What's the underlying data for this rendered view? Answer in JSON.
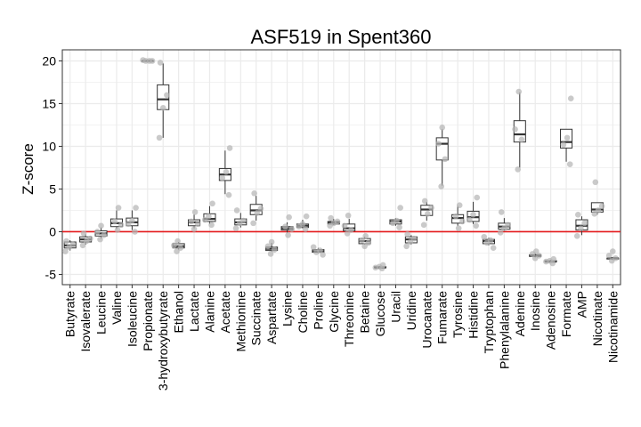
{
  "chart_data": {
    "type": "box",
    "title": "ASF519 in Spent360",
    "xlabel": "",
    "ylabel": "Z-score",
    "ylim": [
      -6.2,
      21.3
    ],
    "yticks": [
      -5,
      0,
      5,
      10,
      15,
      20
    ],
    "grid": true,
    "reference_line": {
      "y": 0,
      "color": "#e41a1c"
    },
    "colors": {
      "box": "#333333",
      "points": "#b3b3b3",
      "grid": "#ebebeb",
      "axis": "#333333"
    },
    "categories": [
      "Butyrate",
      "Isovalerate",
      "Leucine",
      "Valine",
      "Isoleucine",
      "Propionate",
      "3-hydroxybutyrate",
      "Ethanol",
      "Lactate",
      "Alanine",
      "Acetate",
      "Methionine",
      "Succinate",
      "Aspartate",
      "Lysine",
      "Choline",
      "Proline",
      "Glycine",
      "Threonine",
      "Betaine",
      "Glucose",
      "Uracil",
      "Uridine",
      "Urocanate",
      "Fumarate",
      "Tyrosine",
      "Histidine",
      "Tryptophan",
      "Phenylalanine",
      "Adenine",
      "Inosine",
      "Adenosine",
      "Formate",
      "AMP",
      "Nicotinate",
      "Nicotinamide"
    ],
    "boxes": [
      {
        "min": -2.2,
        "q1": -1.9,
        "median": -1.6,
        "q3": -1.2,
        "max": -1.0
      },
      {
        "min": -1.5,
        "q1": -1.2,
        "median": -0.9,
        "q3": -0.6,
        "max": -0.3
      },
      {
        "min": -0.8,
        "q1": -0.5,
        "median": -0.2,
        "q3": 0.1,
        "max": 0.5
      },
      {
        "min": 0.3,
        "q1": 0.6,
        "median": 1.0,
        "q3": 1.5,
        "max": 2.5
      },
      {
        "min": 0.2,
        "q1": 0.7,
        "median": 1.1,
        "q3": 1.6,
        "max": 2.5
      },
      {
        "min": 20.0,
        "q1": 20.0,
        "median": 20.0,
        "q3": 20.0,
        "max": 20.0
      },
      {
        "min": 11.0,
        "q1": 14.3,
        "median": 15.5,
        "q3": 17.2,
        "max": 19.7
      },
      {
        "min": -2.1,
        "q1": -1.9,
        "median": -1.7,
        "q3": -1.4,
        "max": -1.2
      },
      {
        "min": 0.4,
        "q1": 0.7,
        "median": 1.1,
        "q3": 1.4,
        "max": 2.0
      },
      {
        "min": 0.9,
        "q1": 1.2,
        "median": 1.5,
        "q3": 2.1,
        "max": 3.0
      },
      {
        "min": 4.4,
        "q1": 6.0,
        "median": 6.7,
        "q3": 7.4,
        "max": 9.5
      },
      {
        "min": 0.5,
        "q1": 0.8,
        "median": 1.1,
        "q3": 1.5,
        "max": 2.2
      },
      {
        "min": 1.3,
        "q1": 2.0,
        "median": 2.5,
        "q3": 3.2,
        "max": 4.2
      },
      {
        "min": -2.3,
        "q1": -2.2,
        "median": -2.0,
        "q3": -1.8,
        "max": -1.3
      },
      {
        "min": -0.1,
        "q1": 0.2,
        "median": 0.4,
        "q3": 0.6,
        "max": 1.1
      },
      {
        "min": 0.4,
        "q1": 0.5,
        "median": 0.7,
        "q3": 0.9,
        "max": 1.4
      },
      {
        "min": -2.5,
        "q1": -2.4,
        "median": -2.3,
        "q3": -2.1,
        "max": -1.9
      },
      {
        "min": 0.8,
        "q1": 0.9,
        "median": 1.1,
        "q3": 1.2,
        "max": 1.5
      },
      {
        "min": 0.0,
        "q1": 0.1,
        "median": 0.4,
        "q3": 0.9,
        "max": 1.5
      },
      {
        "min": -1.5,
        "q1": -1.4,
        "median": -1.1,
        "q3": -0.8,
        "max": -0.6
      },
      {
        "min": -4.2,
        "q1": -4.2,
        "median": -4.2,
        "q3": -4.1,
        "max": -4.0
      },
      {
        "min": 0.7,
        "q1": 0.9,
        "median": 1.2,
        "q3": 1.4,
        "max": 1.6
      },
      {
        "min": -1.5,
        "q1": -1.3,
        "median": -0.9,
        "q3": -0.6,
        "max": -0.4
      },
      {
        "min": 1.3,
        "q1": 1.9,
        "median": 2.6,
        "q3": 3.1,
        "max": 3.5
      },
      {
        "min": 5.4,
        "q1": 8.4,
        "median": 10.3,
        "q3": 11.0,
        "max": 12.0
      },
      {
        "min": 0.7,
        "q1": 1.0,
        "median": 1.6,
        "q3": 2.0,
        "max": 3.0
      },
      {
        "min": 0.9,
        "q1": 1.2,
        "median": 1.7,
        "q3": 2.4,
        "max": 3.5
      },
      {
        "min": -1.6,
        "q1": -1.4,
        "median": -1.1,
        "q3": -0.9,
        "max": -0.7
      },
      {
        "min": 0.1,
        "q1": 0.3,
        "median": 0.6,
        "q3": 1.0,
        "max": 1.6
      },
      {
        "min": 7.5,
        "q1": 10.5,
        "median": 11.4,
        "q3": 13.0,
        "max": 16.3
      },
      {
        "min": -3.0,
        "q1": -2.9,
        "median": -2.8,
        "q3": -2.7,
        "max": -2.5
      },
      {
        "min": -3.6,
        "q1": -3.5,
        "median": -3.5,
        "q3": -3.4,
        "max": -3.3
      },
      {
        "min": 8.2,
        "q1": 9.8,
        "median": 10.5,
        "q3": 12.0,
        "max": 12.0
      },
      {
        "min": -0.4,
        "q1": 0.2,
        "median": 0.7,
        "q3": 1.4,
        "max": 1.8
      },
      {
        "min": 2.0,
        "q1": 2.3,
        "median": 2.6,
        "q3": 3.4,
        "max": 3.4
      },
      {
        "min": -3.3,
        "q1": -3.2,
        "median": -3.1,
        "q3": -3.1,
        "max": -3.0
      }
    ],
    "points": [
      [
        -2.3,
        -1.8,
        -1.5,
        -1.1
      ],
      [
        -1.6,
        -1.1,
        -0.8,
        -0.2
      ],
      [
        -0.9,
        -0.4,
        0.0,
        0.7
      ],
      [
        0.2,
        0.8,
        1.2,
        2.8
      ],
      [
        0.0,
        0.9,
        1.3,
        2.8
      ],
      [
        20.0,
        20.0,
        20.0,
        20.1
      ],
      [
        11.0,
        14.5,
        16.0,
        19.8
      ],
      [
        -2.3,
        -1.9,
        -1.6,
        -1.1
      ],
      [
        0.3,
        0.9,
        1.2,
        2.3
      ],
      [
        0.8,
        1.4,
        1.8,
        3.3
      ],
      [
        4.3,
        6.3,
        7.0,
        9.8
      ],
      [
        0.4,
        1.0,
        1.3,
        2.5
      ],
      [
        1.0,
        2.2,
        2.7,
        4.5
      ],
      [
        -2.6,
        -2.1,
        -1.7,
        -1.2
      ],
      [
        -0.4,
        0.3,
        0.6,
        1.7
      ],
      [
        0.3,
        0.6,
        0.9,
        1.8
      ],
      [
        -2.7,
        -2.4,
        -2.2,
        -1.8
      ],
      [
        0.7,
        1.0,
        1.2,
        1.6
      ],
      [
        -0.2,
        0.2,
        0.7,
        1.9
      ],
      [
        -1.7,
        -1.3,
        -1.0,
        -0.5
      ],
      [
        -4.3,
        -4.2,
        -4.1,
        -3.9
      ],
      [
        0.5,
        1.0,
        1.3,
        2.8
      ],
      [
        -1.7,
        -1.2,
        -0.8,
        -0.3
      ],
      [
        0.8,
        2.1,
        2.8,
        3.6
      ],
      [
        5.3,
        8.5,
        10.3,
        12.2
      ],
      [
        0.4,
        1.2,
        1.8,
        3.1
      ],
      [
        0.7,
        1.4,
        2.0,
        4.0
      ],
      [
        -1.9,
        -1.3,
        -1.0,
        -0.6
      ],
      [
        -0.1,
        0.4,
        0.8,
        2.3
      ],
      [
        7.3,
        10.8,
        12.0,
        16.4
      ],
      [
        -3.1,
        -2.8,
        -2.6,
        -2.3
      ],
      [
        -3.7,
        -3.5,
        -3.4,
        -3.2
      ],
      [
        7.9,
        10.2,
        11.0,
        15.6
      ],
      [
        -0.5,
        0.4,
        1.0,
        2.0
      ],
      [
        2.1,
        2.5,
        3.0,
        5.8
      ],
      [
        -3.4,
        -3.1,
        -2.8,
        -2.3
      ]
    ]
  }
}
